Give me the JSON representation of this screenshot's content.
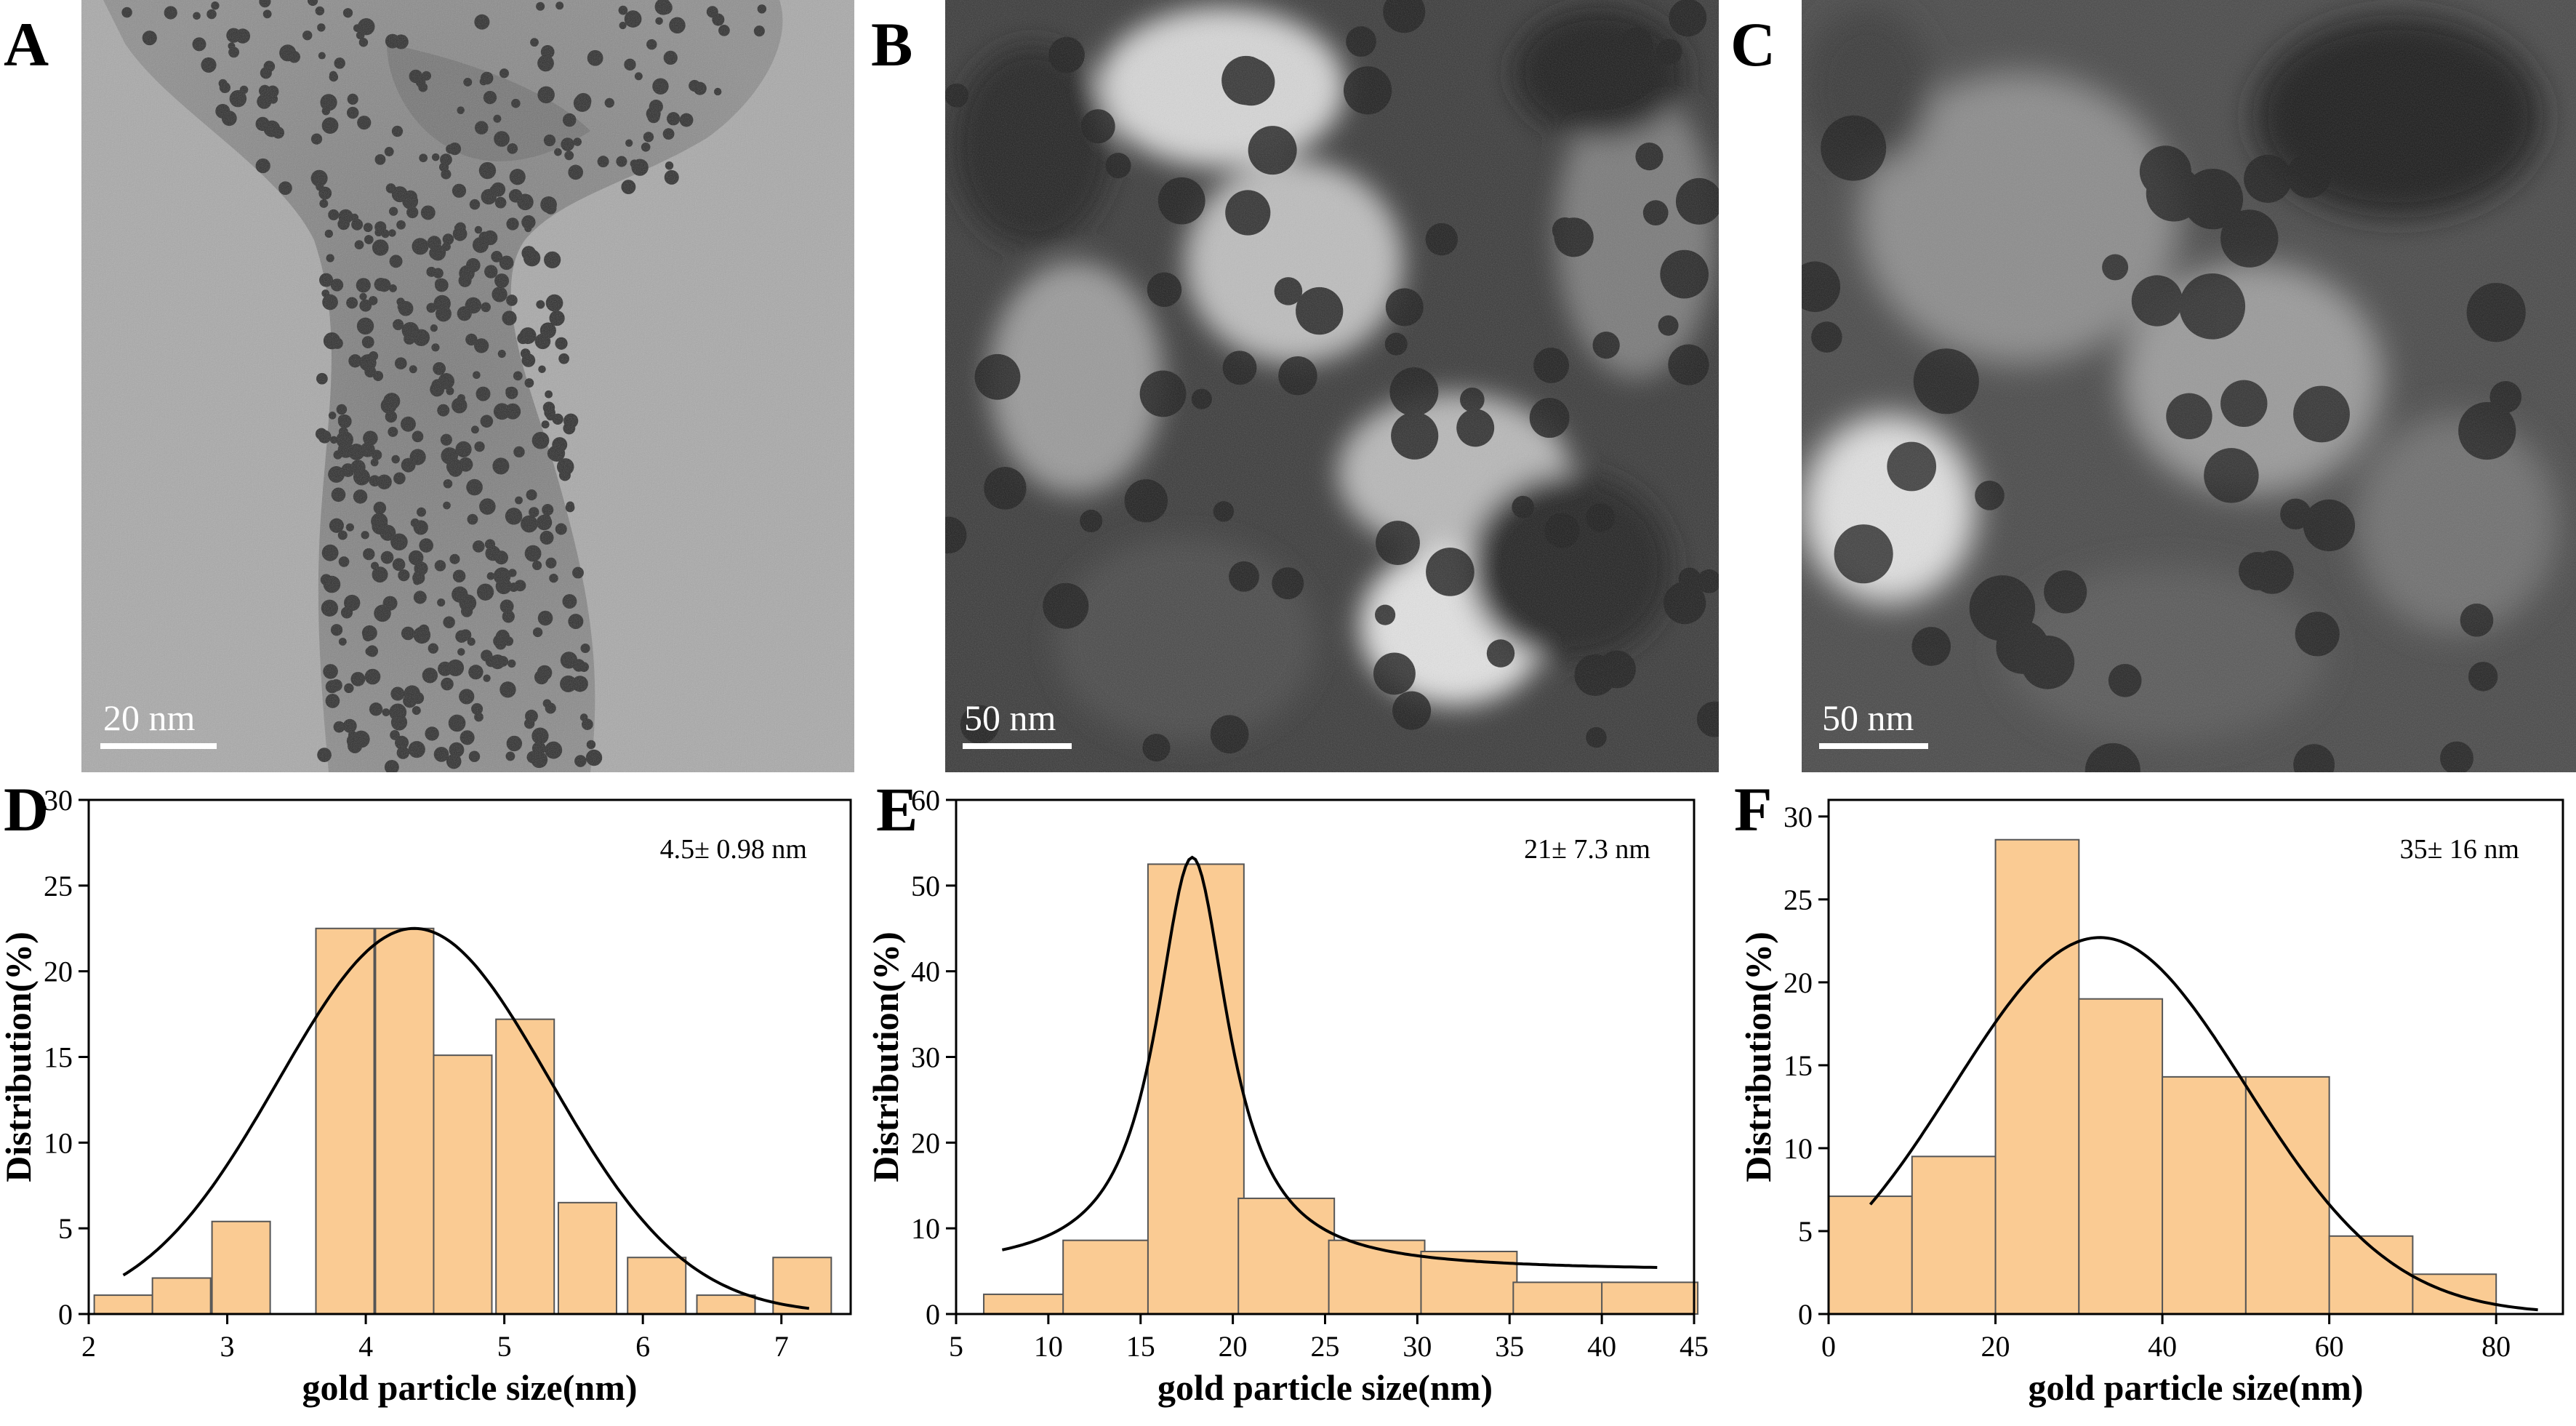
{
  "panels": {
    "A": {
      "letter": "A",
      "scalebar": "20 nm"
    },
    "B": {
      "letter": "B",
      "scalebar": "50 nm"
    },
    "C": {
      "letter": "C",
      "scalebar": "50 nm"
    },
    "D": {
      "letter": "D"
    },
    "E": {
      "letter": "E"
    },
    "F": {
      "letter": "F"
    }
  },
  "colors": {
    "bar_fill": "#FACB93",
    "bar_stroke": "#555555",
    "curve": "#000000"
  },
  "chart_data": [
    {
      "type": "bar",
      "panel": "D",
      "xlabel": "gold particle size(nm)",
      "ylabel": "Distribution(%)",
      "annotation": "4.5± 0.98  nm",
      "xlim": [
        2,
        7.5
      ],
      "ylim": [
        0,
        30
      ],
      "xticks": [
        2,
        3,
        4,
        5,
        6,
        7
      ],
      "yticks": [
        0,
        5,
        10,
        15,
        20,
        25,
        30
      ],
      "bin_width": 0.42,
      "bins": [
        {
          "x": 2.25,
          "value": 1.1
        },
        {
          "x": 2.67,
          "value": 2.1
        },
        {
          "x": 3.1,
          "value": 5.4
        },
        {
          "x": 3.85,
          "value": 22.5
        },
        {
          "x": 4.28,
          "value": 22.5
        },
        {
          "x": 4.7,
          "value": 15.1
        },
        {
          "x": 5.15,
          "value": 17.2
        },
        {
          "x": 5.6,
          "value": 6.5
        },
        {
          "x": 6.1,
          "value": 3.3
        },
        {
          "x": 6.6,
          "value": 1.1
        },
        {
          "x": 7.15,
          "value": 3.3
        }
      ],
      "fit": {
        "type": "gaussian",
        "mean": 4.35,
        "sd": 0.98,
        "amplitude": 22.5,
        "offset": 0,
        "xrange": [
          2.25,
          7.2
        ]
      },
      "grid": false
    },
    {
      "type": "bar",
      "panel": "E",
      "xlabel": "gold particle size(nm)",
      "ylabel": "Distribution(%)",
      "annotation": "21± 7.3  nm",
      "xlim": [
        5,
        45
      ],
      "ylim": [
        0,
        60
      ],
      "xticks": [
        5,
        10,
        15,
        20,
        25,
        30,
        35,
        40,
        45
      ],
      "yticks": [
        0,
        10,
        20,
        30,
        40,
        50,
        60
      ],
      "bin_width": 5.2,
      "bins": [
        {
          "x": 9.1,
          "value": 2.3
        },
        {
          "x": 13.4,
          "value": 8.6
        },
        {
          "x": 18.0,
          "value": 52.5
        },
        {
          "x": 22.9,
          "value": 13.5
        },
        {
          "x": 27.8,
          "value": 8.6
        },
        {
          "x": 32.8,
          "value": 7.3
        },
        {
          "x": 37.8,
          "value": 3.7
        },
        {
          "x": 42.6,
          "value": 3.7
        }
      ],
      "fit": {
        "type": "lorentzian",
        "center": 17.8,
        "hwhm": 2.4,
        "amplitude": 48.3,
        "offset": 5.0,
        "xrange": [
          7.5,
          43
        ]
      },
      "grid": false
    },
    {
      "type": "bar",
      "panel": "F",
      "xlabel": "gold particle size(nm)",
      "ylabel": "Distribution(%)",
      "annotation": "35± 16  nm",
      "xlim": [
        0,
        88
      ],
      "ylim": [
        0,
        31
      ],
      "xticks": [
        0,
        20,
        40,
        60,
        80
      ],
      "yticks": [
        0,
        5,
        10,
        15,
        20,
        25,
        30
      ],
      "bin_width": 10,
      "bins": [
        {
          "x": 5,
          "value": 7.1
        },
        {
          "x": 15,
          "value": 9.5
        },
        {
          "x": 25,
          "value": 28.6
        },
        {
          "x": 35,
          "value": 19.0
        },
        {
          "x": 45,
          "value": 14.3
        },
        {
          "x": 55,
          "value": 14.3
        },
        {
          "x": 65,
          "value": 4.7
        },
        {
          "x": 75,
          "value": 2.4
        }
      ],
      "fit": {
        "type": "gaussian",
        "mean": 32.5,
        "sd": 17.5,
        "amplitude": 22.7,
        "offset": 0,
        "xrange": [
          5,
          85
        ]
      },
      "grid": false
    }
  ]
}
